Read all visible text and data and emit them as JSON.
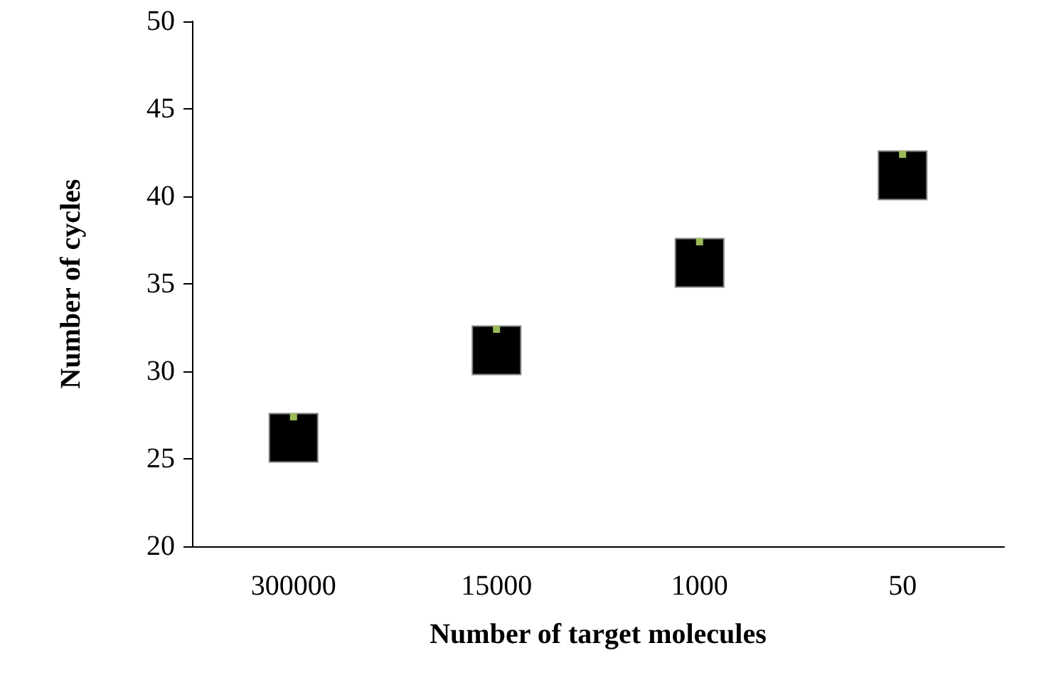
{
  "chart_data": {
    "type": "scatter",
    "xlabel": "Number of target molecules",
    "ylabel": "Number of cycles",
    "categories": [
      "300000",
      "15000",
      "1000",
      "50"
    ],
    "series": [
      {
        "color": "#000000",
        "marker": "square",
        "values": [
          26.2,
          31.2,
          36.2,
          41.2
        ]
      },
      {
        "color": "#9bbb59",
        "marker": "square",
        "values": [
          27.4,
          32.4,
          37.4,
          42.4
        ]
      }
    ],
    "ylim": [
      20,
      50
    ],
    "yticks": [
      20,
      25,
      30,
      35,
      40,
      45,
      50
    ]
  }
}
